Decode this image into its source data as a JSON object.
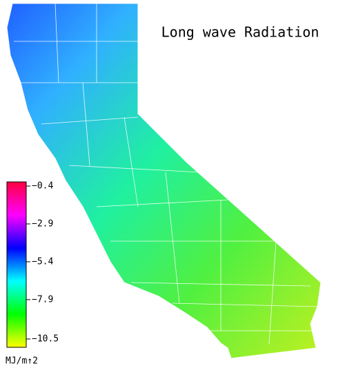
{
  "title": "Long wave Radiation",
  "colorbar": {
    "ticks": [
      {
        "value": -0.4,
        "label": "−0.4"
      },
      {
        "value": -2.9,
        "label": "−2.9"
      },
      {
        "value": -5.4,
        "label": "−5.4"
      },
      {
        "value": -7.9,
        "label": "−7.9"
      },
      {
        "value": -10.5,
        "label": "−10.5"
      }
    ],
    "clim": [
      -0.4,
      -10.5
    ],
    "colors": [
      "#ff0040",
      "#ff00ff",
      "#0000ff",
      "#00ffff",
      "#00ff00",
      "#ffff00"
    ],
    "units": "MJ/m↑2"
  }
}
